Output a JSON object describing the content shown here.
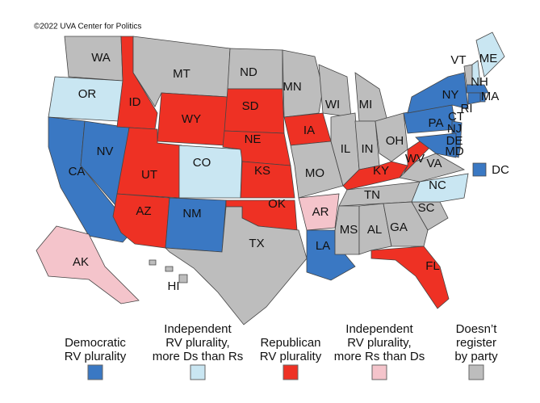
{
  "credit": "©2022 UVA Center for Politics",
  "states": [
    {
      "label": "WA",
      "color": "#bdbdbd"
    },
    {
      "label": "OR",
      "color": "#c9e6f2"
    },
    {
      "label": "CA",
      "color": "#3a78c3"
    },
    {
      "label": "NV",
      "color": "#3a78c3"
    },
    {
      "label": "ID",
      "color": "#ee3124"
    },
    {
      "label": "MT",
      "color": "#bdbdbd"
    },
    {
      "label": "WY",
      "color": "#ee3124"
    },
    {
      "label": "UT",
      "color": "#ee3124"
    },
    {
      "label": "CO",
      "color": "#c9e6f2"
    },
    {
      "label": "AZ",
      "color": "#ee3124"
    },
    {
      "label": "NM",
      "color": "#3a78c3"
    },
    {
      "label": "ND",
      "color": "#bdbdbd"
    },
    {
      "label": "SD",
      "color": "#ee3124"
    },
    {
      "label": "NE",
      "color": "#ee3124"
    },
    {
      "label": "KS",
      "color": "#ee3124"
    },
    {
      "label": "OK",
      "color": "#ee3124"
    },
    {
      "label": "TX",
      "color": "#bdbdbd"
    },
    {
      "label": "MN",
      "color": "#bdbdbd"
    },
    {
      "label": "IA",
      "color": "#ee3124"
    },
    {
      "label": "MO",
      "color": "#bdbdbd"
    },
    {
      "label": "AR",
      "color": "#f4c4cb"
    },
    {
      "label": "LA",
      "color": "#3a78c3"
    },
    {
      "label": "WI",
      "color": "#bdbdbd"
    },
    {
      "label": "IL",
      "color": "#bdbdbd"
    },
    {
      "label": "MI",
      "color": "#bdbdbd"
    },
    {
      "label": "IN",
      "color": "#bdbdbd"
    },
    {
      "label": "OH",
      "color": "#bdbdbd"
    },
    {
      "label": "KY",
      "color": "#ee3124"
    },
    {
      "label": "TN",
      "color": "#bdbdbd"
    },
    {
      "label": "MS",
      "color": "#bdbdbd"
    },
    {
      "label": "AL",
      "color": "#bdbdbd"
    },
    {
      "label": "GA",
      "color": "#bdbdbd"
    },
    {
      "label": "FL",
      "color": "#ee3124"
    },
    {
      "label": "SC",
      "color": "#bdbdbd"
    },
    {
      "label": "NC",
      "color": "#c9e6f2"
    },
    {
      "label": "VA",
      "color": "#bdbdbd"
    },
    {
      "label": "WV",
      "color": "#ee3124"
    },
    {
      "label": "PA",
      "color": "#3a78c3"
    },
    {
      "label": "NY",
      "color": "#3a78c3"
    },
    {
      "label": "NJ",
      "color": "#3a78c3"
    },
    {
      "label": "DE",
      "color": "#3a78c3"
    },
    {
      "label": "MD",
      "color": "#3a78c3"
    },
    {
      "label": "VT",
      "color": "#bdbdbd"
    },
    {
      "label": "NH",
      "color": "#c9e6f2"
    },
    {
      "label": "MA",
      "color": "#c9e6f2"
    },
    {
      "label": "RI",
      "color": "#3a78c3"
    },
    {
      "label": "CT",
      "color": "#3a78c3"
    },
    {
      "label": "ME",
      "color": "#3a78c3"
    },
    {
      "label": "DC",
      "color": "#3a78c3"
    },
    {
      "label": "AK",
      "color": "#f4c4cb"
    },
    {
      "label": "HI",
      "color": "#bdbdbd"
    }
  ],
  "legend": [
    {
      "lines": [
        "Democratic",
        "RV plurality"
      ],
      "color": "#3a78c3"
    },
    {
      "lines": [
        "Independent",
        "RV plurality,",
        "more Ds than Rs"
      ],
      "color": "#c9e6f2"
    },
    {
      "lines": [
        "Republican",
        "RV plurality"
      ],
      "color": "#ee3124"
    },
    {
      "lines": [
        "Independent",
        "RV plurality,",
        "more Rs than Ds"
      ],
      "color": "#f4c4cb"
    },
    {
      "lines": [
        "Doesn’t",
        "register",
        "by party"
      ],
      "color": "#bdbdbd"
    }
  ]
}
